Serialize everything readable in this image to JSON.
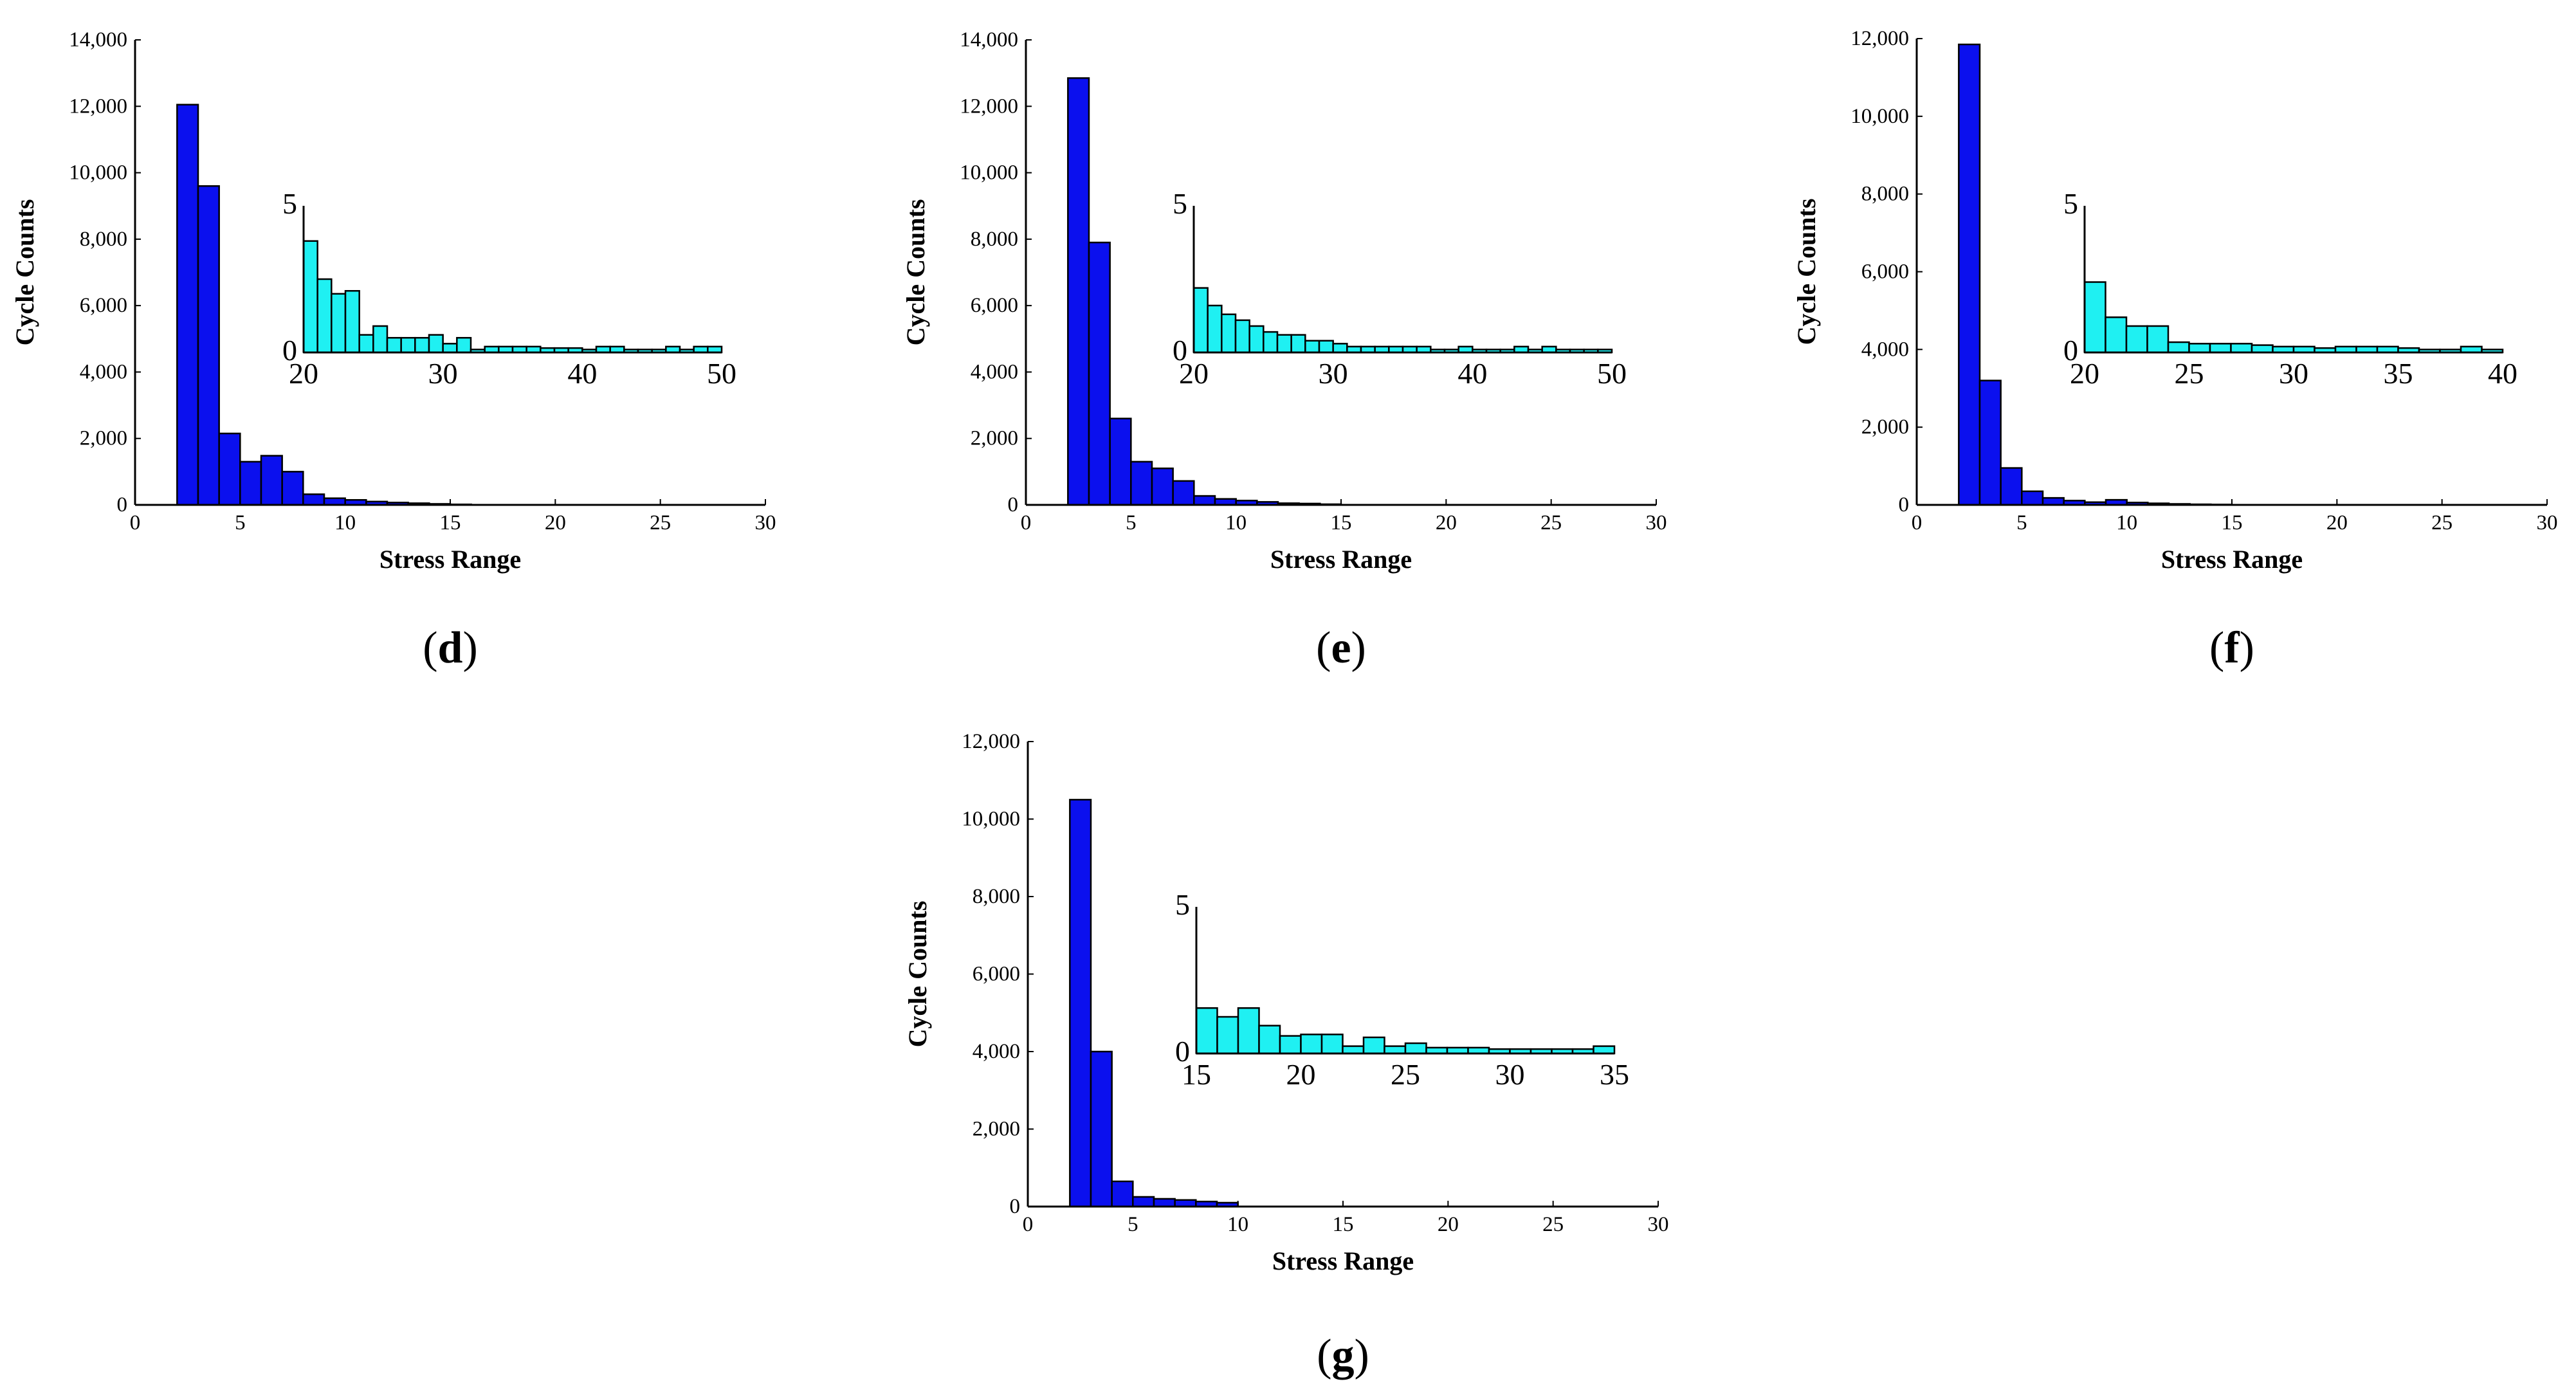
{
  "colors": {
    "main_bar": "#0b10ee",
    "inset_bar": "#1ff0f2",
    "bar_edge": "#000000",
    "axis": "#000000"
  },
  "chart_data": [
    {
      "type": "bar",
      "panel": "d",
      "panel_label": [
        "(",
        "d",
        ")"
      ],
      "xlabel": "Stress Range",
      "ylabel": "Cycle Counts",
      "xlim": [
        0,
        30
      ],
      "ylim": [
        0,
        14000
      ],
      "xticks": [
        0,
        5,
        10,
        15,
        20,
        25,
        30
      ],
      "xtick_labels": [
        "0",
        "5",
        "10",
        "15",
        "20",
        "25",
        "30"
      ],
      "yticks": [
        0,
        2000,
        4000,
        6000,
        8000,
        10000,
        12000,
        14000
      ],
      "ytick_labels": [
        "0",
        "2,000",
        "4,000",
        "6,000",
        "8,000",
        "10,000",
        "12,000",
        "14,000"
      ],
      "bin_width": 1,
      "x": [
        2.5,
        3.5,
        4.5,
        5.5,
        6.5,
        7.5,
        8.5,
        9.5,
        10.5,
        11.5,
        12.5,
        13.5,
        14.5,
        15.5
      ],
      "values": [
        12050,
        9600,
        2150,
        1300,
        1480,
        1000,
        320,
        200,
        150,
        100,
        70,
        50,
        30,
        15
      ],
      "inset": {
        "xlim": [
          20,
          50
        ],
        "ylim": [
          0,
          5
        ],
        "xticks": [
          20,
          30,
          40,
          50
        ],
        "xtick_labels": [
          "20",
          "30",
          "40",
          "50"
        ],
        "yticks": [
          0,
          5
        ],
        "ytick_labels": [
          "0",
          "5"
        ],
        "bin_width": 1,
        "x": [
          20.5,
          21.5,
          22.5,
          23.5,
          24.5,
          25.5,
          26.5,
          27.5,
          28.5,
          29.5,
          30.5,
          31.5,
          32.5,
          33.5,
          34.5,
          35.5,
          36.5,
          37.5,
          38.5,
          39.5,
          40.5,
          41.5,
          42.5,
          43.5,
          44.5,
          45.5,
          46.5,
          47.5,
          48.5,
          49.5
        ],
        "values": [
          3.8,
          2.5,
          2.0,
          2.1,
          0.6,
          0.9,
          0.5,
          0.5,
          0.5,
          0.6,
          0.3,
          0.5,
          0.1,
          0.2,
          0.2,
          0.2,
          0.2,
          0.15,
          0.15,
          0.15,
          0.1,
          0.2,
          0.2,
          0.1,
          0.1,
          0.1,
          0.2,
          0.1,
          0.2,
          0.2
        ]
      }
    },
    {
      "type": "bar",
      "panel": "e",
      "panel_label": [
        "(",
        "e",
        ")"
      ],
      "xlabel": "Stress Range",
      "ylabel": "Cycle Counts",
      "xlim": [
        0,
        30
      ],
      "ylim": [
        0,
        14000
      ],
      "xticks": [
        0,
        5,
        10,
        15,
        20,
        25,
        30
      ],
      "xtick_labels": [
        "0",
        "5",
        "10",
        "15",
        "20",
        "25",
        "30"
      ],
      "yticks": [
        0,
        2000,
        4000,
        6000,
        8000,
        10000,
        12000,
        14000
      ],
      "ytick_labels": [
        "0",
        "2,000",
        "4,000",
        "6,000",
        "8,000",
        "10,000",
        "12,000",
        "14,000"
      ],
      "bin_width": 1,
      "x": [
        2.5,
        3.5,
        4.5,
        5.5,
        6.5,
        7.5,
        8.5,
        9.5,
        10.5,
        11.5,
        12.5,
        13.5,
        14.5
      ],
      "values": [
        12850,
        7900,
        2600,
        1300,
        1100,
        720,
        270,
        180,
        130,
        90,
        50,
        40,
        20
      ],
      "inset": {
        "xlim": [
          20,
          50
        ],
        "ylim": [
          0,
          5
        ],
        "xticks": [
          20,
          30,
          40,
          50
        ],
        "xtick_labels": [
          "20",
          "30",
          "40",
          "50"
        ],
        "yticks": [
          0,
          5
        ],
        "ytick_labels": [
          "0",
          "5"
        ],
        "bin_width": 1,
        "x": [
          20.5,
          21.5,
          22.5,
          23.5,
          24.5,
          25.5,
          26.5,
          27.5,
          28.5,
          29.5,
          30.5,
          31.5,
          32.5,
          33.5,
          34.5,
          35.5,
          36.5,
          37.5,
          38.5,
          39.5,
          40.5,
          41.5,
          42.5,
          43.5,
          44.5,
          45.5,
          46.5,
          47.5,
          48.5,
          49.5
        ],
        "values": [
          2.2,
          1.6,
          1.3,
          1.1,
          0.9,
          0.7,
          0.6,
          0.6,
          0.4,
          0.4,
          0.3,
          0.2,
          0.2,
          0.2,
          0.2,
          0.2,
          0.2,
          0.1,
          0.1,
          0.2,
          0.1,
          0.1,
          0.1,
          0.2,
          0.1,
          0.2,
          0.1,
          0.1,
          0.1,
          0.1
        ]
      }
    },
    {
      "type": "bar",
      "panel": "f",
      "panel_label": [
        "(",
        "f",
        ")"
      ],
      "xlabel": "Stress Range",
      "ylabel": "Cycle Counts",
      "xlim": [
        0,
        30
      ],
      "ylim": [
        0,
        12000
      ],
      "xticks": [
        0,
        5,
        10,
        15,
        20,
        25,
        30
      ],
      "xtick_labels": [
        "0",
        "5",
        "10",
        "15",
        "20",
        "25",
        "30"
      ],
      "yticks": [
        0,
        2000,
        4000,
        6000,
        8000,
        10000,
        12000
      ],
      "ytick_labels": [
        "0",
        "2,000",
        "4,000",
        "6,000",
        "8,000",
        "10,000",
        "12,000"
      ],
      "bin_width": 1,
      "x": [
        2.5,
        3.5,
        4.5,
        5.5,
        6.5,
        7.5,
        8.5,
        9.5,
        10.5,
        11.5,
        12.5,
        13.5,
        14.5
      ],
      "values": [
        11850,
        3200,
        950,
        350,
        180,
        110,
        70,
        130,
        60,
        40,
        25,
        15,
        10
      ],
      "inset": {
        "xlim": [
          20,
          40
        ],
        "ylim": [
          0,
          5
        ],
        "xticks": [
          20,
          25,
          30,
          35,
          40
        ],
        "xtick_labels": [
          "20",
          "25",
          "30",
          "35",
          "40"
        ],
        "yticks": [
          0,
          5
        ],
        "ytick_labels": [
          "0",
          "5"
        ],
        "bin_width": 1,
        "x": [
          20.5,
          21.5,
          22.5,
          23.5,
          24.5,
          25.5,
          26.5,
          27.5,
          28.5,
          29.5,
          30.5,
          31.5,
          32.5,
          33.5,
          34.5,
          35.5,
          36.5,
          37.5,
          38.5,
          39.5
        ],
        "values": [
          2.4,
          1.2,
          0.9,
          0.9,
          0.35,
          0.3,
          0.3,
          0.3,
          0.25,
          0.2,
          0.2,
          0.15,
          0.2,
          0.2,
          0.2,
          0.15,
          0.1,
          0.1,
          0.2,
          0.1
        ]
      }
    },
    {
      "type": "bar",
      "panel": "g",
      "panel_label": [
        "(",
        "g",
        ")"
      ],
      "xlabel": "Stress Range",
      "ylabel": "Cycle Counts",
      "xlim": [
        0,
        30
      ],
      "ylim": [
        0,
        12000
      ],
      "xticks": [
        0,
        5,
        10,
        15,
        20,
        25,
        30
      ],
      "xtick_labels": [
        "0",
        "5",
        "10",
        "15",
        "20",
        "25",
        "30"
      ],
      "yticks": [
        0,
        2000,
        4000,
        6000,
        8000,
        10000,
        12000
      ],
      "ytick_labels": [
        "0",
        "2,000",
        "4,000",
        "6,000",
        "8,000",
        "10,000",
        "12,000"
      ],
      "bin_width": 1,
      "x": [
        2.5,
        3.5,
        4.5,
        5.5,
        6.5,
        7.5,
        8.5,
        9.5
      ],
      "values": [
        10500,
        4000,
        650,
        250,
        200,
        170,
        130,
        100
      ],
      "inset": {
        "xlim": [
          15,
          35
        ],
        "ylim": [
          0,
          5
        ],
        "xticks": [
          15,
          20,
          25,
          30,
          35
        ],
        "xtick_labels": [
          "15",
          "20",
          "25",
          "30",
          "35"
        ],
        "yticks": [
          0,
          5
        ],
        "ytick_labels": [
          "0",
          "5"
        ],
        "bin_width": 1,
        "x": [
          15.5,
          16.5,
          17.5,
          18.5,
          19.5,
          20.5,
          21.5,
          22.5,
          23.5,
          24.5,
          25.5,
          26.5,
          27.5,
          28.5,
          29.5,
          30.5,
          31.5,
          32.5,
          33.5,
          34.5
        ],
        "values": [
          1.55,
          1.25,
          1.55,
          0.95,
          0.6,
          0.65,
          0.65,
          0.25,
          0.55,
          0.25,
          0.35,
          0.2,
          0.2,
          0.2,
          0.15,
          0.15,
          0.15,
          0.15,
          0.15,
          0.25
        ]
      }
    }
  ]
}
